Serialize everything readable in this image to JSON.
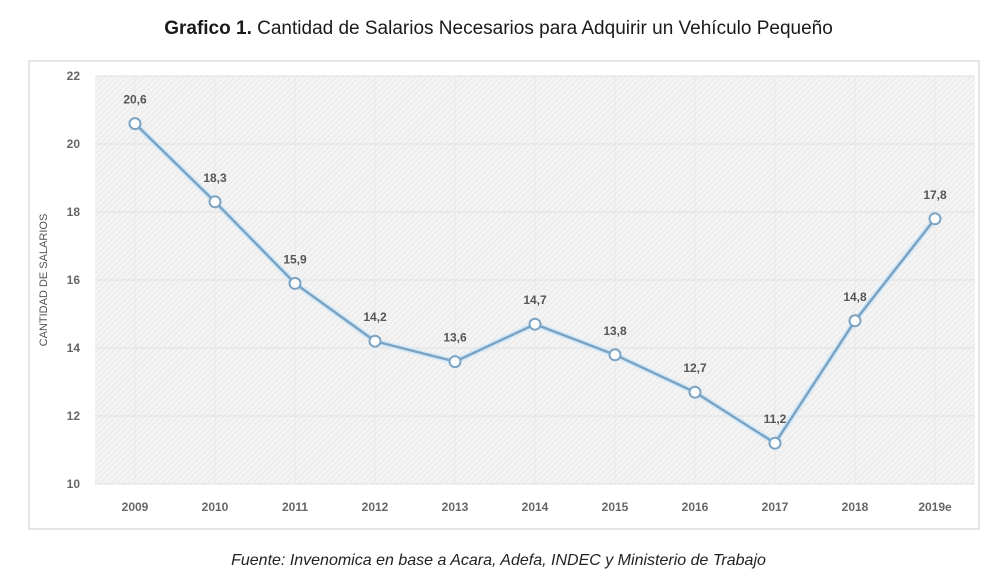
{
  "chart_data": {
    "type": "line",
    "title_prefix": "Grafico 1.",
    "title": "Cantidad de Salarios Necesarios para Adquirir un Vehículo Pequeño",
    "xlabel": "",
    "ylabel": "CANTIDAD DE SALARIOS",
    "categories": [
      "2009",
      "2010",
      "2011",
      "2012",
      "2013",
      "2014",
      "2015",
      "2016",
      "2017",
      "2018",
      "2019e"
    ],
    "series": [
      {
        "name": "Cantidad de salarios",
        "values": [
          20.6,
          18.3,
          15.9,
          14.2,
          13.6,
          14.7,
          13.8,
          12.7,
          11.2,
          14.8,
          17.8
        ],
        "labels": [
          "20,6",
          "18,3",
          "15,9",
          "14,2",
          "13,6",
          "14,7",
          "13,8",
          "12,7",
          "11,2",
          "14,8",
          "17,8"
        ],
        "color": "#7ba3c4"
      }
    ],
    "ylim": [
      10,
      22
    ],
    "yticks": [
      "10",
      "12",
      "14",
      "16",
      "18",
      "20",
      "22"
    ],
    "grid": true,
    "legend": "none",
    "source": "Fuente: Invenomica en base a Acara, Adefa, INDEC y Ministerio de Trabajo"
  }
}
